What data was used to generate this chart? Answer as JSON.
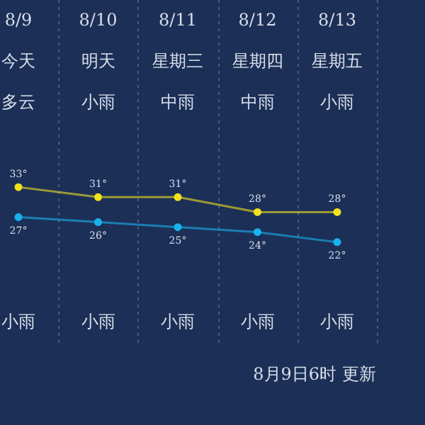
{
  "chart_data": {
    "type": "line",
    "categories": [
      "8/9",
      "8/10",
      "8/11",
      "8/12",
      "8/13"
    ],
    "series": [
      {
        "color": "#f2e21e",
        "values": [
          33,
          31,
          31,
          28,
          28
        ],
        "value_labels": [
          "33°",
          "31°",
          "31°",
          "28°",
          "28°"
        ]
      },
      {
        "color": "#19b2ee",
        "values": [
          27,
          26,
          25,
          24,
          22
        ],
        "value_labels": [
          "27°",
          "26°",
          "25°",
          "24°",
          "22°"
        ]
      }
    ],
    "annotations": [
      "今天",
      "明天",
      "星期三",
      "星期四",
      "星期五",
      "多云",
      "小雨",
      "中雨",
      "中雨",
      "小雨",
      "小雨",
      "小雨",
      "小雨",
      "小雨",
      "小雨",
      "8月9日6时 更新"
    ],
    "grid": "x",
    "marker": "circle",
    "line_style": "solid",
    "legend": false
  }
}
